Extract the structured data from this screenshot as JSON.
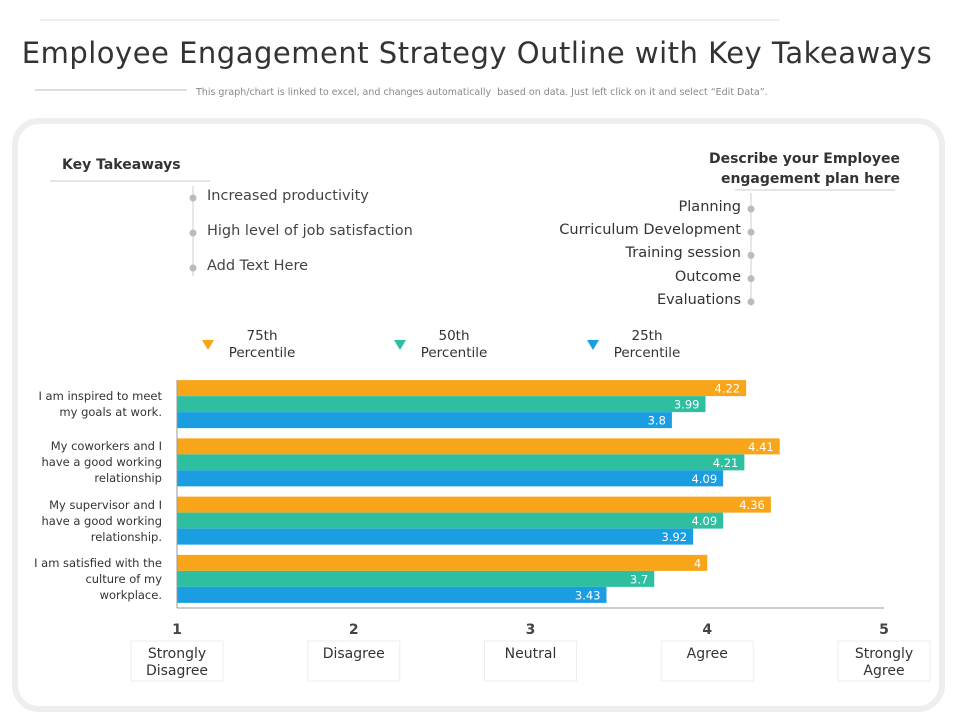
{
  "chart_data": {
    "type": "bar",
    "orientation": "horizontal",
    "title": "Employee Engagement Strategy Outline with Key Takeaways",
    "subtitle": "This graph/chart is linked to excel, and changes automatically  based on data. Just left click on it and select “Edit Data”.",
    "categories": [
      "I am inspired to meet my goals at work.",
      "My coworkers and I have a good working relationship",
      "My supervisor and I have a good working relationship.",
      "I am satisfied with the culture of my workplace."
    ],
    "series": [
      {
        "name": "75th Percentile",
        "color": "#f9a51a",
        "values": [
          4.22,
          4.41,
          4.36,
          4
        ]
      },
      {
        "name": "50th Percentile",
        "color": "#2ebfa0",
        "values": [
          3.99,
          4.21,
          4.09,
          3.7
        ]
      },
      {
        "name": "25th Percentile",
        "color": "#1b9de2",
        "values": [
          3.8,
          4.09,
          3.92,
          3.43
        ]
      }
    ],
    "xlim": [
      1,
      5
    ],
    "xticks": [
      1,
      2,
      3,
      4,
      5
    ],
    "xtick_descriptions": [
      "Strongly Disagree",
      "Disagree",
      "Neutral",
      "Agree",
      "Strongly Agree"
    ]
  },
  "key_takeaways": {
    "title": "Key Takeaways",
    "items": [
      "Increased productivity",
      "High level of job satisfaction",
      "Add Text Here"
    ]
  },
  "plan": {
    "title": "Describe your Employee engagement plan here",
    "items": [
      "Planning",
      "Curriculum Development",
      "Training session",
      "Outcome",
      "Evaluations"
    ]
  }
}
